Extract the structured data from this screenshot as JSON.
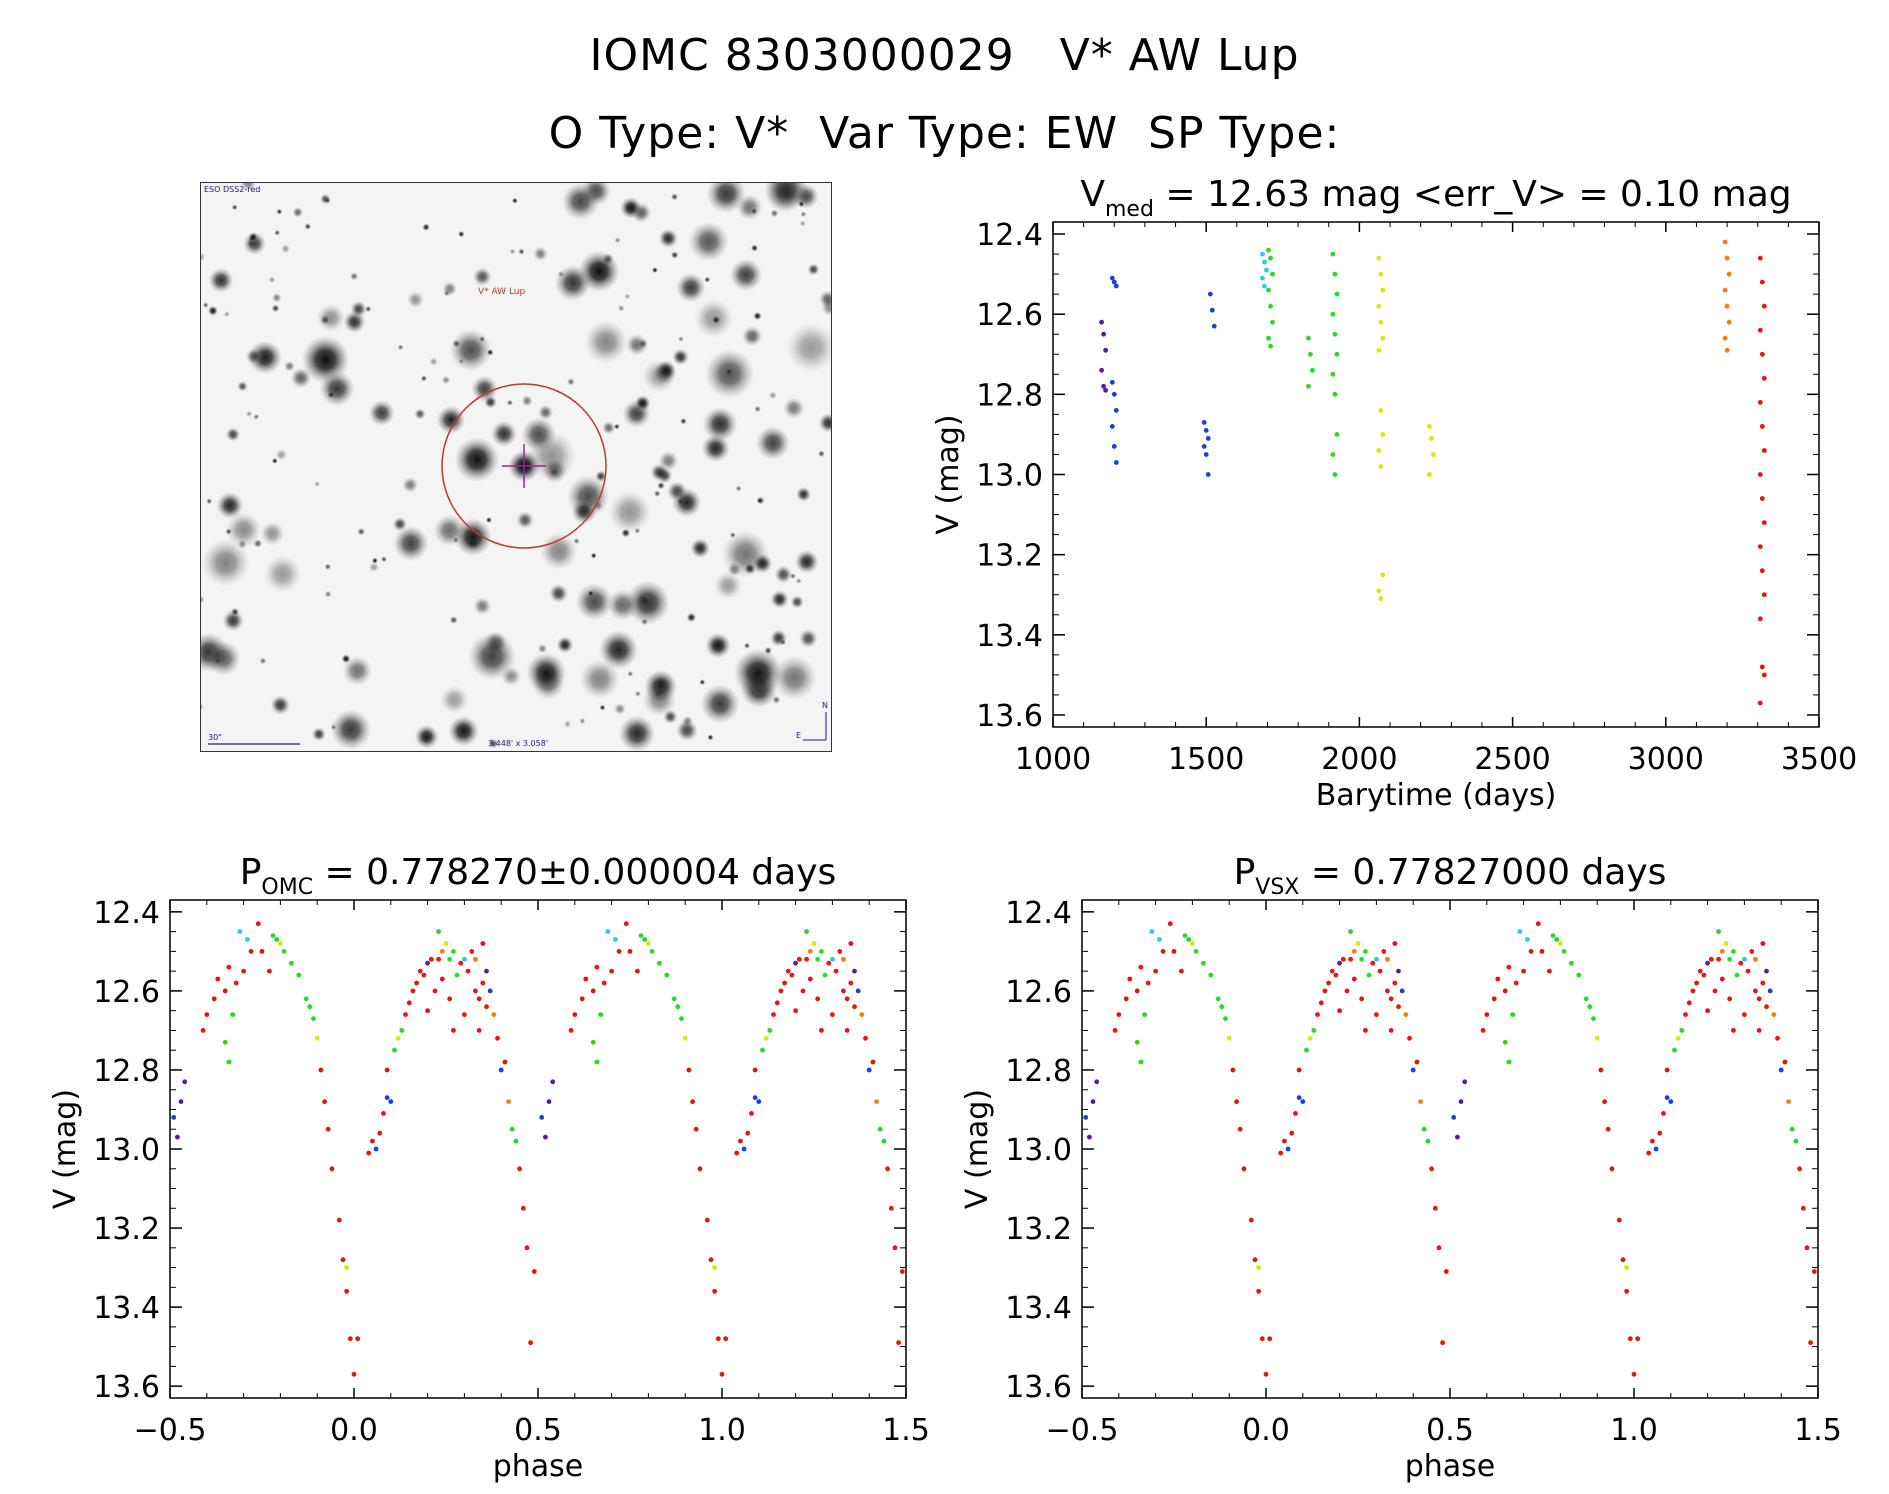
{
  "header": {
    "title_line1": "IOMC 8303000029   V* AW Lup",
    "title_line2": "O Type: V*  Var Type: EW  SP Type:"
  },
  "sky_image": {
    "corner_label": "ESO DSS2-red",
    "target_label": "V* AW Lup",
    "scale_label": "30\"",
    "fov_label": "3.448' x 3.058'",
    "east_label": "E",
    "north_label": "N",
    "marker_color": "#c0392b",
    "crosshair_color": "#a020a0"
  },
  "colors": {
    "purple": "#5a189a",
    "blue": "#1a3fe0",
    "cyan": "#22d0ee",
    "green": "#22dd22",
    "yellow": "#e4e400",
    "orange": "#ff7a00",
    "red": "#ee1111"
  },
  "chart_data": [
    {
      "type": "scatter",
      "id": "lightcurve",
      "title_main": "V",
      "title_sub": "med",
      "title_rest": " = 12.63 mag <err_V> = 0.10 mag",
      "xlabel": "Barytime (days)",
      "ylabel": "V (mag)",
      "xlim": [
        1000,
        3500
      ],
      "ylim": [
        12.37,
        13.63
      ],
      "y_inverted": true,
      "xticks": [
        1000,
        1500,
        2000,
        2500,
        3000,
        3500
      ],
      "yticks": [
        12.4,
        12.6,
        12.8,
        13.0,
        13.2,
        13.4,
        13.6
      ],
      "series": [
        {
          "color": "purple",
          "clusters": [
            {
              "x": 1165,
              "y": [
                12.62,
                12.65,
                12.69,
                12.74,
                12.78,
                12.79
              ]
            }
          ]
        },
        {
          "color": "blue",
          "clusters": [
            {
              "x": 1200,
              "y": [
                12.51,
                12.52,
                12.53,
                12.77,
                12.8,
                12.84,
                12.88,
                12.93,
                12.97
              ]
            },
            {
              "x": 1500,
              "y": [
                12.87,
                12.89,
                12.91,
                12.93,
                12.95,
                13.0
              ]
            },
            {
              "x": 1520,
              "y": [
                12.55,
                12.59,
                12.63
              ]
            }
          ]
        },
        {
          "color": "cyan",
          "clusters": [
            {
              "x": 1690,
              "y": [
                12.45,
                12.47,
                12.49,
                12.51,
                12.53
              ]
            }
          ]
        },
        {
          "color": "green",
          "clusters": [
            {
              "x": 1710,
              "y": [
                12.44,
                12.46,
                12.5,
                12.54,
                12.58,
                12.62,
                12.66,
                12.68
              ]
            },
            {
              "x": 1840,
              "y": [
                12.66,
                12.7,
                12.74,
                12.78
              ]
            },
            {
              "x": 1920,
              "y": [
                12.45,
                12.5,
                12.55,
                12.6,
                12.65,
                12.7,
                12.75,
                12.8,
                12.9,
                12.95,
                13.0
              ]
            }
          ]
        },
        {
          "color": "yellow",
          "clusters": [
            {
              "x": 2070,
              "y": [
                12.46,
                12.5,
                12.54,
                12.58,
                12.62,
                12.66,
                12.69,
                12.84,
                12.9,
                12.94,
                12.98,
                13.25,
                13.29,
                13.31
              ]
            },
            {
              "x": 2235,
              "y": [
                12.88,
                12.91,
                12.95,
                13.0
              ]
            }
          ]
        },
        {
          "color": "orange",
          "clusters": [
            {
              "x": 3200,
              "y": [
                12.42,
                12.46,
                12.5,
                12.54,
                12.58,
                12.62,
                12.66,
                12.69
              ]
            }
          ]
        },
        {
          "color": "red",
          "clusters": [
            {
              "x": 3315,
              "y": [
                12.46,
                12.52,
                12.58,
                12.64,
                12.7,
                12.76,
                12.82,
                12.88,
                12.94,
                13.0,
                13.06,
                13.12,
                13.18,
                13.24,
                13.3,
                13.36,
                13.48,
                13.5,
                13.57
              ]
            }
          ]
        }
      ]
    },
    {
      "type": "scatter",
      "id": "phase-omc",
      "title_main": "P",
      "title_sub": "OMC",
      "title_rest": " = 0.778270±0.000004 days",
      "xlabel": "phase",
      "ylabel": "V (mag)",
      "xlim": [
        -0.5,
        1.5
      ],
      "ylim": [
        12.37,
        13.63
      ],
      "y_inverted": true,
      "xticks": [
        -0.5,
        0.0,
        0.5,
        1.0,
        1.5
      ],
      "yticks": [
        12.4,
        12.6,
        12.8,
        13.0,
        13.2,
        13.4,
        13.6
      ],
      "period_in_phase": 1.0,
      "points": [
        [
          0.0,
          13.57,
          "red"
        ],
        [
          -0.01,
          13.48,
          "red"
        ],
        [
          0.01,
          13.48,
          "red"
        ],
        [
          -0.02,
          13.36,
          "red"
        ],
        [
          -0.03,
          13.28,
          "red"
        ],
        [
          -0.02,
          13.3,
          "yellow"
        ],
        [
          -0.04,
          13.18,
          "red"
        ],
        [
          -0.06,
          13.05,
          "red"
        ],
        [
          -0.07,
          12.95,
          "red"
        ],
        [
          -0.08,
          12.88,
          "red"
        ],
        [
          -0.09,
          12.8,
          "red"
        ],
        [
          -0.1,
          12.72,
          "yellow"
        ],
        [
          -0.11,
          12.67,
          "green"
        ],
        [
          -0.12,
          12.64,
          "green"
        ],
        [
          -0.13,
          12.62,
          "green"
        ],
        [
          -0.15,
          12.56,
          "green"
        ],
        [
          -0.17,
          12.53,
          "green"
        ],
        [
          -0.19,
          12.5,
          "green"
        ],
        [
          -0.21,
          12.47,
          "green"
        ],
        [
          -0.22,
          12.46,
          "green"
        ],
        [
          -0.2,
          12.48,
          "yellow"
        ],
        [
          -0.23,
          12.55,
          "red"
        ],
        [
          -0.25,
          12.5,
          "red"
        ],
        [
          -0.26,
          12.43,
          "red"
        ],
        [
          -0.28,
          12.5,
          "red"
        ],
        [
          -0.29,
          12.47,
          "cyan"
        ],
        [
          -0.31,
          12.45,
          "cyan"
        ],
        [
          -0.3,
          12.55,
          "red"
        ],
        [
          -0.32,
          12.58,
          "red"
        ],
        [
          -0.34,
          12.54,
          "red"
        ],
        [
          -0.35,
          12.6,
          "red"
        ],
        [
          -0.37,
          12.57,
          "red"
        ],
        [
          -0.38,
          12.62,
          "red"
        ],
        [
          -0.33,
          12.66,
          "green"
        ],
        [
          -0.35,
          12.73,
          "green"
        ],
        [
          -0.34,
          12.78,
          "green"
        ],
        [
          -0.4,
          12.66,
          "red"
        ],
        [
          -0.41,
          12.7,
          "red"
        ],
        [
          -0.47,
          12.88,
          "purple"
        ],
        [
          -0.46,
          12.83,
          "purple"
        ],
        [
          -0.48,
          12.97,
          "purple"
        ],
        [
          -0.49,
          12.92,
          "blue"
        ],
        [
          0.04,
          13.01,
          "red"
        ],
        [
          0.05,
          12.98,
          "red"
        ],
        [
          0.06,
          13.0,
          "blue"
        ],
        [
          0.07,
          12.96,
          "red"
        ],
        [
          0.08,
          12.91,
          "red"
        ],
        [
          0.09,
          12.87,
          "blue"
        ],
        [
          0.1,
          12.88,
          "blue"
        ],
        [
          0.09,
          12.8,
          "red"
        ],
        [
          0.11,
          12.75,
          "green"
        ],
        [
          0.12,
          12.72,
          "yellow"
        ],
        [
          0.13,
          12.7,
          "green"
        ],
        [
          0.14,
          12.66,
          "red"
        ],
        [
          0.15,
          12.63,
          "red"
        ],
        [
          0.16,
          12.6,
          "red"
        ],
        [
          0.17,
          12.58,
          "red"
        ],
        [
          0.18,
          12.55,
          "red"
        ],
        [
          0.2,
          12.53,
          "purple"
        ],
        [
          0.21,
          12.52,
          "red"
        ],
        [
          0.23,
          12.52,
          "red"
        ],
        [
          0.24,
          12.5,
          "orange"
        ],
        [
          0.25,
          12.48,
          "yellow"
        ],
        [
          0.26,
          12.52,
          "green"
        ],
        [
          0.27,
          12.5,
          "green"
        ],
        [
          0.28,
          12.56,
          "green"
        ],
        [
          0.29,
          12.53,
          "red"
        ],
        [
          0.3,
          12.52,
          "cyan"
        ],
        [
          0.31,
          12.55,
          "red"
        ],
        [
          0.32,
          12.5,
          "red"
        ],
        [
          0.33,
          12.6,
          "red"
        ],
        [
          0.34,
          12.62,
          "red"
        ],
        [
          0.35,
          12.58,
          "red"
        ],
        [
          0.36,
          12.64,
          "red"
        ],
        [
          0.37,
          12.6,
          "blue"
        ],
        [
          0.38,
          12.66,
          "orange"
        ],
        [
          0.39,
          12.72,
          "red"
        ],
        [
          0.4,
          12.8,
          "blue"
        ],
        [
          0.41,
          12.78,
          "red"
        ],
        [
          0.42,
          12.88,
          "orange"
        ],
        [
          0.43,
          12.95,
          "green"
        ],
        [
          0.44,
          12.98,
          "green"
        ],
        [
          0.45,
          13.05,
          "red"
        ],
        [
          0.46,
          13.15,
          "red"
        ],
        [
          0.47,
          13.25,
          "red"
        ],
        [
          0.48,
          13.49,
          "red"
        ],
        [
          0.49,
          13.31,
          "red"
        ],
        [
          0.27,
          12.7,
          "red"
        ],
        [
          0.2,
          12.65,
          "red"
        ],
        [
          0.22,
          12.6,
          "red"
        ],
        [
          0.24,
          12.57,
          "red"
        ],
        [
          0.26,
          12.62,
          "red"
        ],
        [
          0.3,
          12.66,
          "red"
        ],
        [
          0.34,
          12.7,
          "red"
        ],
        [
          0.36,
          12.55,
          "purple"
        ],
        [
          0.33,
          12.52,
          "orange"
        ],
        [
          0.23,
          12.45,
          "green"
        ],
        [
          0.19,
          12.56,
          "red"
        ],
        [
          0.35,
          12.48,
          "red"
        ]
      ]
    },
    {
      "type": "scatter",
      "id": "phase-vsx",
      "title_main": "P",
      "title_sub": "VSX",
      "title_rest": " = 0.77827000 days",
      "xlabel": "phase",
      "ylabel": "V (mag)",
      "xlim": [
        -0.5,
        1.5
      ],
      "ylim": [
        12.37,
        13.63
      ],
      "y_inverted": true,
      "xticks": [
        -0.5,
        0.0,
        0.5,
        1.0,
        1.5
      ],
      "yticks": [
        12.4,
        12.6,
        12.8,
        13.0,
        13.2,
        13.4,
        13.6
      ],
      "period_in_phase": 1.0,
      "same_points_as": "phase-omc"
    }
  ]
}
